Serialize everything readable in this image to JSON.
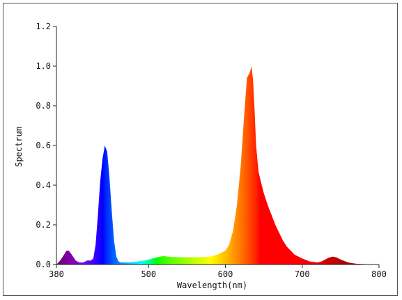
{
  "chart_data": {
    "type": "area",
    "title": "",
    "xlabel": "Wavelength(nm)",
    "ylabel": "Spectrum",
    "xlim": [
      380,
      800
    ],
    "ylim": [
      0,
      1.2
    ],
    "x_ticks": [
      380,
      500,
      600,
      700,
      800
    ],
    "x_tick_labels": [
      "380",
      "500",
      "600",
      "700",
      "800"
    ],
    "y_ticks": [
      0,
      0.2,
      0.4,
      0.6,
      0.8,
      1.0,
      1.2
    ],
    "y_tick_labels": [
      "0.0",
      "0.2",
      "0.4",
      "0.6",
      "0.8",
      "1.0",
      "1.2"
    ],
    "grid": false,
    "legend": "none",
    "fill": "wavelength-colored spectrum",
    "series": [
      {
        "x": [
          380,
          385,
          390,
          393,
          396,
          400,
          405,
          410,
          415,
          420,
          425,
          428,
          431,
          434,
          437,
          440,
          443,
          446,
          449,
          452,
          455,
          458,
          461,
          464,
          467,
          470,
          475,
          480,
          485,
          490,
          495,
          500,
          505,
          510,
          515,
          520,
          525,
          530,
          540,
          550,
          560,
          570,
          580,
          585,
          590,
          595,
          600,
          605,
          610,
          615,
          620,
          624,
          628,
          632,
          634,
          636,
          638,
          640,
          643,
          646,
          650,
          655,
          660,
          665,
          670,
          675,
          680,
          690,
          700,
          710,
          720,
          725,
          730,
          735,
          740,
          745,
          750,
          760,
          770,
          780,
          790,
          800
        ],
        "y": [
          0.0,
          0.02,
          0.05,
          0.07,
          0.07,
          0.05,
          0.02,
          0.01,
          0.01,
          0.02,
          0.02,
          0.03,
          0.1,
          0.25,
          0.42,
          0.53,
          0.6,
          0.57,
          0.44,
          0.27,
          0.12,
          0.04,
          0.015,
          0.01,
          0.01,
          0.01,
          0.01,
          0.012,
          0.015,
          0.018,
          0.02,
          0.025,
          0.03,
          0.035,
          0.04,
          0.042,
          0.04,
          0.038,
          0.037,
          0.037,
          0.037,
          0.038,
          0.04,
          0.045,
          0.05,
          0.06,
          0.07,
          0.1,
          0.17,
          0.3,
          0.5,
          0.73,
          0.94,
          0.97,
          1.0,
          0.93,
          0.78,
          0.6,
          0.47,
          0.42,
          0.36,
          0.3,
          0.25,
          0.2,
          0.16,
          0.12,
          0.09,
          0.05,
          0.03,
          0.015,
          0.01,
          0.015,
          0.025,
          0.035,
          0.04,
          0.035,
          0.025,
          0.01,
          0.004,
          0.002,
          0.0,
          0.0
        ]
      }
    ]
  }
}
